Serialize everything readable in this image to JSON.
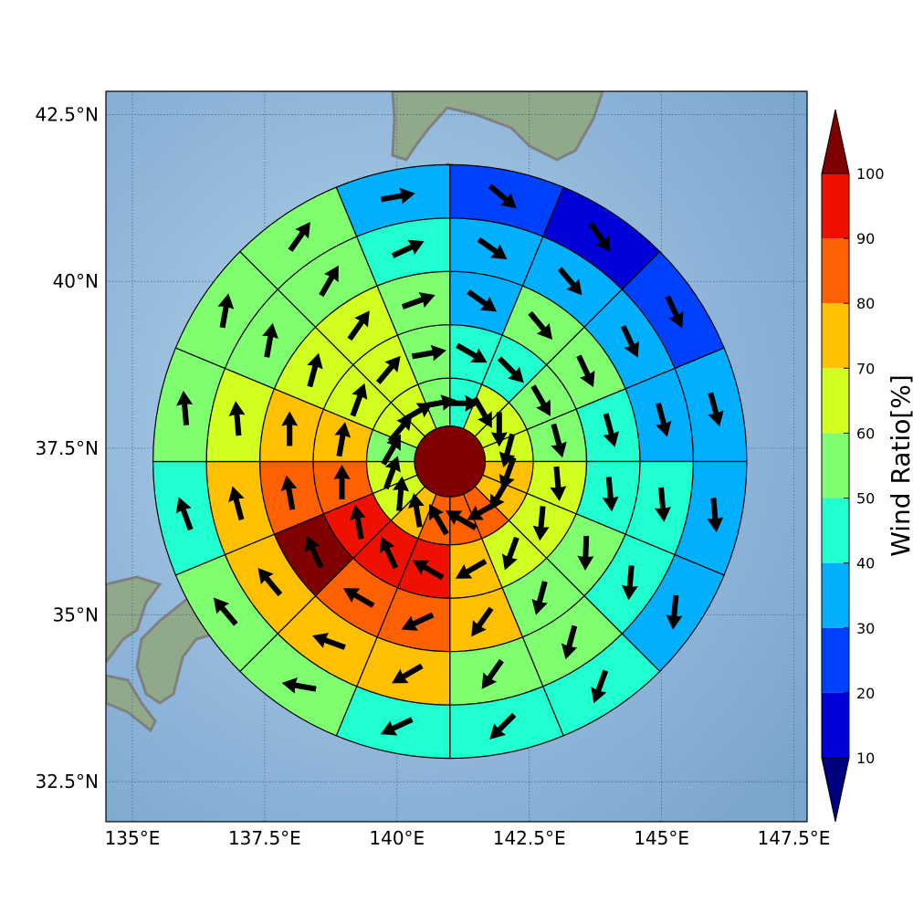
{
  "map": {
    "lon_range": [
      134.5,
      147.75
    ],
    "lat_range": [
      31.9,
      42.85
    ],
    "lon_ticks": [
      {
        "value": 135,
        "label": "135°E"
      },
      {
        "value": 137.5,
        "label": "137.5°E"
      },
      {
        "value": 140,
        "label": "140°E"
      },
      {
        "value": 142.5,
        "label": "142.5°E"
      },
      {
        "value": 145,
        "label": "145°E"
      },
      {
        "value": 147.5,
        "label": "147.5°E"
      }
    ],
    "lat_ticks": [
      {
        "value": 32.5,
        "label": "32.5°N"
      },
      {
        "value": 35,
        "label": "35°N"
      },
      {
        "value": 37.5,
        "label": "37.5°N"
      },
      {
        "value": 40,
        "label": "40°N"
      },
      {
        "value": 42.5,
        "label": "42.5°N"
      }
    ],
    "center": {
      "lon": 141.0,
      "lat": 37.3
    },
    "ring_edges_deg_lat": [
      0.53,
      1.25,
      2.05,
      2.85,
      3.65,
      4.45
    ],
    "sectors_per_ring": 16,
    "background": {
      "land": "#7f9a72",
      "sea": "#7fa9cf",
      "coastline": "#808080"
    }
  },
  "wind_grid": {
    "center_value": 100,
    "rings": [
      [
        46,
        62,
        68,
        65,
        72,
        75,
        88,
        85,
        82,
        72,
        68,
        62,
        58,
        62,
        62,
        56
      ],
      [
        45,
        47,
        56,
        58,
        65,
        68,
        68,
        78,
        92,
        96,
        92,
        86,
        76,
        66,
        68,
        55
      ],
      [
        38,
        55,
        55,
        46,
        47,
        52,
        58,
        70,
        85,
        88,
        100,
        86,
        78,
        66,
        62,
        58
      ],
      [
        33,
        35,
        37,
        38,
        44,
        45,
        52,
        55,
        76,
        75,
        76,
        75,
        65,
        58,
        55,
        47
      ],
      [
        22,
        19,
        25,
        30,
        34,
        35,
        42,
        45,
        44,
        55,
        52,
        45,
        57,
        58,
        56,
        32
      ],
      [
        18,
        18,
        26,
        30,
        32,
        35,
        34,
        34,
        36,
        46,
        45,
        47,
        55,
        58,
        55,
        36
      ]
    ]
  },
  "wind_vectors": {
    "rings": [
      [
        90,
        150,
        180,
        195,
        200,
        210,
        240,
        300,
        330,
        350,
        5,
        20,
        30,
        40,
        60,
        80
      ],
      [
        120,
        135,
        150,
        165,
        175,
        185,
        200,
        240,
        300,
        335,
        350,
        0,
        10,
        20,
        40,
        80
      ],
      [
        125,
        140,
        155,
        165,
        175,
        182,
        195,
        215,
        245,
        300,
        335,
        350,
        0,
        15,
        35,
        70
      ],
      [
        125,
        140,
        155,
        165,
        175,
        185,
        195,
        215,
        240,
        290,
        320,
        345,
        355,
        10,
        30,
        65
      ],
      [
        130,
        145,
        155,
        165,
        175,
        185,
        200,
        225,
        245,
        280,
        320,
        340,
        355,
        10,
        35,
        80
      ],
      [
        130,
        145,
        160,
        170,
        175,
        185,
        200,
        230,
        255,
        285,
        320,
        340,
        355,
        15,
        40,
        85
      ]
    ]
  },
  "colorbar": {
    "label": "Wind Ratio[%]",
    "ticks": [
      "10",
      "20",
      "30",
      "40",
      "50",
      "60",
      "70",
      "80",
      "90",
      "100"
    ],
    "colors": [
      "#0000d8",
      "#0040ff",
      "#00b0ff",
      "#20ffd0",
      "#7fff70",
      "#d0ff20",
      "#ffc000",
      "#ff6000",
      "#f01000"
    ],
    "under_color": "#00007f",
    "over_color": "#7f0000"
  }
}
